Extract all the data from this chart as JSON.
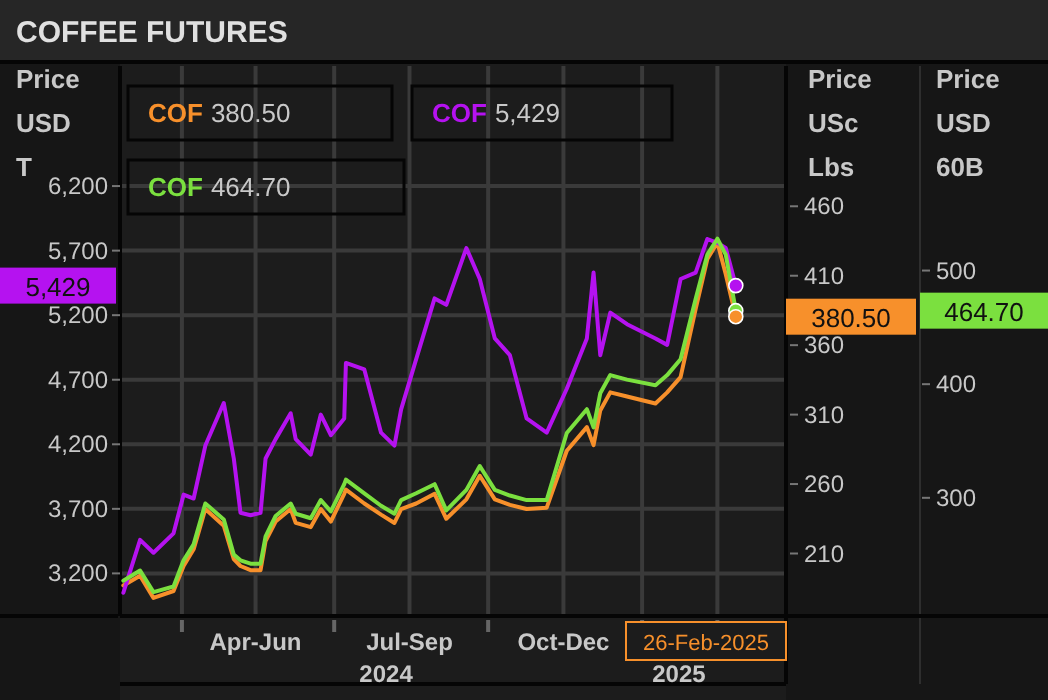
{
  "chart_data": {
    "type": "line",
    "title": "COFFEE FUTURES",
    "ylabel": "Price\nUSD\nT",
    "y2label": "Price\nUSc\nLbs",
    "y3label": "Price\nUSD\n60B",
    "x": [
      "2024-02-26",
      "2024-03-07",
      "2024-03-15",
      "2024-03-27",
      "2024-04-02",
      "2024-04-08",
      "2024-04-15",
      "2024-04-26",
      "2024-05-02",
      "2024-05-06",
      "2024-05-12",
      "2024-05-18",
      "2024-05-21",
      "2024-05-27",
      "2024-06-05",
      "2024-06-08",
      "2024-06-17",
      "2024-06-23",
      "2024-06-29",
      "2024-07-07",
      "2024-07-08",
      "2024-07-19",
      "2024-07-29",
      "2024-08-06",
      "2024-08-10",
      "2024-08-19",
      "2024-08-30",
      "2024-09-06",
      "2024-09-18",
      "2024-09-26",
      "2024-10-05",
      "2024-10-14",
      "2024-10-24",
      "2024-11-05",
      "2024-11-17",
      "2024-11-29",
      "2024-12-03",
      "2024-12-07",
      "2024-12-13",
      "2024-12-23",
      "2025-01-09",
      "2025-01-16",
      "2025-01-24",
      "2025-02-02",
      "2025-02-09",
      "2025-02-15",
      "2025-02-20",
      "2025-02-26"
    ],
    "series": [
      {
        "name": "COF",
        "color": "#f7902b",
        "axis": "y2",
        "values": [
          187,
          194,
          178,
          183,
          201,
          213,
          242,
          230,
          206,
          201,
          198,
          198,
          219,
          233,
          242,
          232,
          229,
          242,
          233,
          253,
          256,
          246,
          238,
          232,
          242,
          246,
          253,
          235,
          249,
          266,
          249,
          245,
          242,
          243,
          284,
          301,
          288,
          313,
          326,
          323,
          318,
          326,
          337,
          386,
          422,
          434,
          411,
          380.5
        ]
      },
      {
        "name": "COF",
        "color": "#b512f0",
        "axis": "y",
        "values": [
          3050,
          3460,
          3360,
          3510,
          3810,
          3780,
          4190,
          4520,
          4090,
          3670,
          3650,
          3670,
          4090,
          4240,
          4440,
          4240,
          4120,
          4430,
          4270,
          4400,
          4830,
          4780,
          4290,
          4190,
          4470,
          4860,
          5330,
          5280,
          5720,
          5480,
          5020,
          4890,
          4400,
          4290,
          4630,
          5020,
          5530,
          4890,
          5220,
          5130,
          5020,
          4970,
          5480,
          5530,
          5790,
          5760,
          5720,
          5429
        ]
      },
      {
        "name": "COF",
        "color": "#7be03f",
        "axis": "y3",
        "values": [
          227,
          236,
          217,
          222,
          245,
          259,
          295,
          281,
          250,
          245,
          242,
          242,
          266,
          284,
          295,
          286,
          282,
          298,
          288,
          312,
          316,
          304,
          293,
          286,
          298,
          304,
          312,
          289,
          307,
          328,
          307,
          302,
          298,
          298,
          357,
          378,
          362,
          392,
          408,
          404,
          399,
          408,
          422,
          475,
          514,
          528,
          514,
          464.7
        ]
      }
    ],
    "annotations": [
      "380.50",
      "5,429",
      "464.70",
      "26-Feb-2025"
    ],
    "xlim": [
      "2024-02-24",
      "2025-03-28"
    ],
    "xticks": [
      {
        "value": "2024-04-01",
        "label": null
      },
      {
        "value": "2024-05-15",
        "label": "Apr-Jun"
      },
      {
        "value": "2024-07-01",
        "label": null
      },
      {
        "value": "2024-08-15",
        "label": "Jul-Sep"
      },
      {
        "value": "2024-10-01",
        "label": null
      },
      {
        "value": "2024-11-15",
        "label": "Oct-Dec"
      },
      {
        "value": "2025-01-01",
        "label": null
      },
      {
        "value": "2025-02-15",
        "label": null
      }
    ],
    "x2lim": [
      "2024-02-24",
      "2025-03-28"
    ],
    "x2ticks": [
      {
        "value": "2024-08-01",
        "label": "2024"
      },
      {
        "value": "2025-01-23",
        "label": "2025"
      }
    ],
    "ylim": [
      2870,
      7130
    ],
    "yticks": [
      {
        "value": 3200,
        "label": "3,200"
      },
      {
        "value": 3700,
        "label": "3,700"
      },
      {
        "value": 4200,
        "label": "4,200"
      },
      {
        "value": 4700,
        "label": "4,700"
      },
      {
        "value": 5200,
        "label": "5,200"
      },
      {
        "value": 5700,
        "label": "5,700"
      },
      {
        "value": 6200,
        "label": "6,200"
      }
    ],
    "y2lim": [
      165,
      561
    ],
    "y2ticks": [
      210,
      260,
      310,
      360,
      410,
      460
    ],
    "y3lim": [
      196,
      680
    ],
    "y3ticks": [
      300,
      400,
      500
    ],
    "grid": true,
    "legend": "top left",
    "marker": "none",
    "line_style": "solid"
  }
}
